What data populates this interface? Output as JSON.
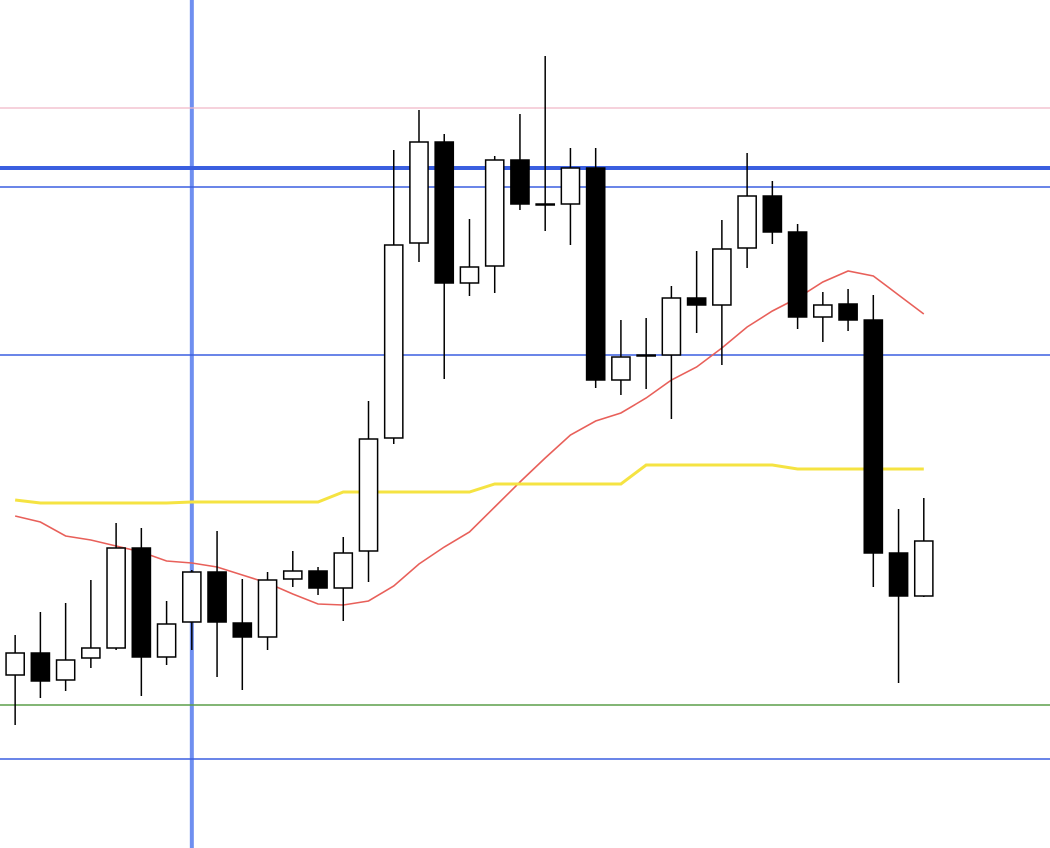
{
  "chart_data": {
    "type": "candlestick",
    "x": [
      0,
      1,
      2,
      3,
      4,
      5,
      6,
      7,
      8,
      9,
      10,
      11,
      12,
      13,
      14,
      15,
      16,
      17,
      18,
      19,
      20,
      21,
      22,
      23,
      24,
      25,
      26,
      27,
      28,
      29,
      30,
      31,
      32,
      33,
      34,
      35,
      36
    ],
    "open": [
      173,
      195,
      168,
      190,
      200,
      300,
      191,
      226,
      276,
      225,
      211,
      269,
      277,
      260,
      297,
      410,
      605,
      706,
      565,
      582,
      688,
      644,
      644,
      680,
      468,
      493,
      493,
      550,
      543,
      600,
      652,
      616,
      531,
      544,
      528,
      295,
      252
    ],
    "high": [
      213,
      236,
      245,
      268,
      325,
      320,
      247,
      278,
      317,
      269,
      276,
      297,
      281,
      311,
      447,
      698,
      738,
      714,
      629,
      692,
      734,
      792,
      700,
      700,
      528,
      530,
      562,
      597,
      628,
      695,
      667,
      624,
      556,
      559,
      553,
      339,
      350
    ],
    "low": [
      123,
      150,
      157,
      180,
      198,
      152,
      183,
      198,
      171,
      158,
      198,
      261,
      253,
      227,
      266,
      404,
      586,
      469,
      552,
      555,
      638,
      617,
      603,
      460,
      453,
      459,
      429,
      515,
      483,
      580,
      604,
      519,
      506,
      517,
      261,
      165,
      251
    ],
    "close": [
      195,
      167,
      188,
      200,
      300,
      191,
      224,
      276,
      226,
      211,
      268,
      277,
      260,
      295,
      409,
      603,
      706,
      565,
      581,
      688,
      644,
      644,
      680,
      468,
      491,
      493,
      550,
      543,
      599,
      652,
      616,
      531,
      543,
      528,
      295,
      252,
      307
    ],
    "up_color": "#ffffff",
    "down_color": "#000000",
    "series": [
      {
        "color": "#e8605a",
        "width": 1.6,
        "values": [
          332,
          326,
          312,
          308,
          302,
          296,
          287,
          285,
          281,
          273,
          265,
          254,
          244,
          243,
          247,
          262,
          284,
          301,
          316,
          341,
          366,
          390,
          413,
          427,
          435,
          450,
          468,
          481,
          500,
          521,
          537,
          550,
          566,
          577,
          572,
          553,
          534
        ]
      },
      {
        "color": "#f5e342",
        "width": 3,
        "values": [
          348,
          345,
          345,
          345,
          345,
          345,
          345,
          346,
          346,
          346,
          346,
          346,
          346,
          356,
          356,
          356,
          356,
          356,
          356,
          364,
          364,
          364,
          364,
          364,
          364,
          383,
          383,
          383,
          383,
          383,
          383,
          379,
          379,
          379,
          379,
          379,
          379
        ]
      }
    ],
    "hlines": [
      {
        "value": 740,
        "color": "#f0b8c8",
        "width": 1.2
      },
      {
        "value": 680,
        "color": "#3a5fe0",
        "width": 4
      },
      {
        "value": 661,
        "color": "#3a5fe0",
        "width": 1.5
      },
      {
        "value": 493,
        "color": "#3a5fe0",
        "width": 1.5
      },
      {
        "value": 143,
        "color": "#5a9e48",
        "width": 1.5
      },
      {
        "value": 89,
        "color": "#3a5fe0",
        "width": 1.5
      }
    ],
    "vline": {
      "x": 7,
      "color": "#6f8ff0",
      "width": 4
    },
    "xlim": [
      -0.6,
      41
    ],
    "ylim": [
      0,
      848
    ]
  }
}
